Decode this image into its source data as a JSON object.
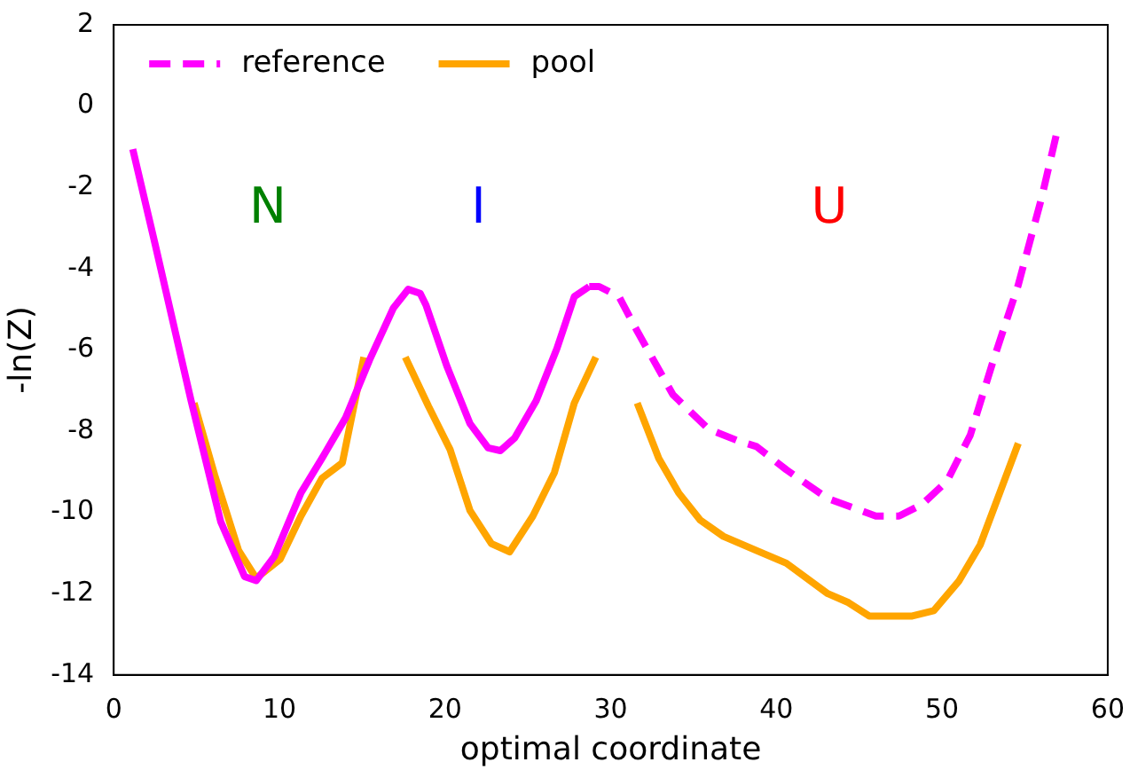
{
  "chart_data": {
    "type": "line",
    "xlabel": "optimal coordinate",
    "ylabel": "-ln(Z)",
    "xlim": [
      0,
      60
    ],
    "xticks": [
      0,
      10,
      20,
      30,
      40,
      50,
      60
    ],
    "ylim": [
      -14,
      2
    ],
    "yticks": [
      -14,
      -12,
      -10,
      -8,
      -6,
      -4,
      -2,
      0,
      2
    ],
    "grid": false,
    "legend": "top left",
    "marker": "none",
    "annotations": [
      "N",
      "I",
      "U"
    ],
    "series": [
      {
        "color": "#ff00ff",
        "line_style": "solid",
        "x": [
          1.15,
          2.5,
          4.67,
          6.46,
          7.9,
          8.6,
          9.7,
          11.3,
          12.57,
          14.0,
          15.44,
          16.88,
          17.77,
          18.5,
          18.85,
          20.1,
          21.5,
          22.6,
          23.34,
          24.2,
          25.5,
          26.75,
          27.8,
          28.7
        ],
        "values": [
          -1.06,
          -3.4,
          -7.25,
          -10.23,
          -11.58,
          -11.68,
          -11.08,
          -9.52,
          -8.67,
          -7.67,
          -6.25,
          -4.97,
          -4.51,
          -4.61,
          -4.9,
          -6.39,
          -7.81,
          -8.41,
          -8.48,
          -8.17,
          -7.25,
          -5.97,
          -4.69,
          -4.44
        ]
      },
      {
        "name": "reference",
        "color": "#ff00ff",
        "line_style": "dashed",
        "x": [
          28.7,
          29.3,
          30.5,
          31.6,
          33.75,
          35.9,
          37.7,
          38.8,
          40.6,
          43.1,
          46.0,
          47.4,
          48.8,
          50.3,
          51.7,
          53.1,
          54.6,
          56.0,
          56.9,
          57.3
        ],
        "values": [
          -4.44,
          -4.44,
          -4.69,
          -5.54,
          -7.1,
          -7.95,
          -8.24,
          -8.38,
          -8.95,
          -9.66,
          -10.09,
          -10.09,
          -9.8,
          -9.23,
          -8.1,
          -6.25,
          -4.4,
          -2.27,
          -0.7,
          -0.91
        ]
      },
      {
        "name": "pool",
        "color": "#ffa500",
        "line_style": "solid",
        "x": [
          4.85,
          6.1,
          7.54,
          8.6,
          10.05,
          11.3,
          12.57,
          13.8,
          15.1,
          16.3,
          17.6,
          19.0,
          20.3,
          21.5,
          22.8,
          23.9,
          25.3,
          26.6,
          27.8,
          29.1,
          30.3,
          31.6,
          32.9,
          34.1,
          35.4,
          36.8,
          38.8,
          40.6,
          43.1,
          44.35,
          45.6,
          48.2,
          49.5,
          51.0,
          52.3,
          53.5,
          54.6
        ],
        "values": [
          -7.31,
          -9.09,
          -10.94,
          -11.62,
          -11.15,
          -10.09,
          -9.16,
          -8.78,
          -6.18,
          null,
          -6.18,
          -7.39,
          -8.45,
          -9.95,
          -10.77,
          -10.97,
          -10.09,
          -9.02,
          -7.31,
          -6.18,
          null,
          -7.31,
          -8.67,
          -9.52,
          -10.19,
          -10.59,
          -10.94,
          -11.25,
          -12.0,
          -12.22,
          -12.55,
          -12.55,
          -12.42,
          -11.7,
          -10.8,
          -9.5,
          -8.3
        ]
      }
    ]
  }
}
